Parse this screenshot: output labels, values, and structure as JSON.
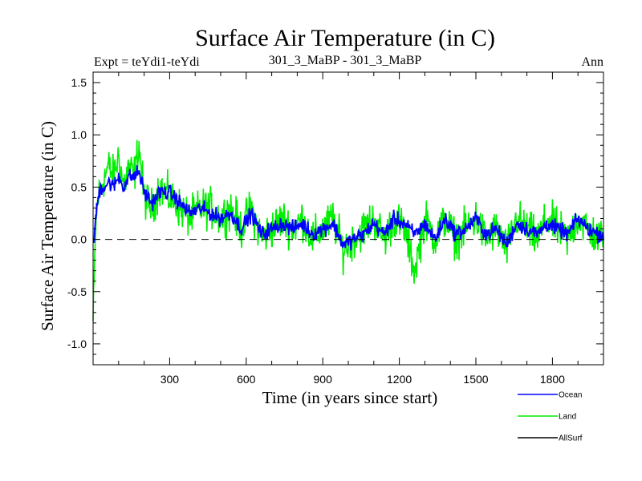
{
  "chart_data": {
    "type": "line",
    "title": "Surface Air Temperature (in C)",
    "subtitle_left": "Expt = teYdi1-teYdi",
    "subtitle_center": "301_3_MaBP - 301_3_MaBP",
    "subtitle_right": "Ann",
    "xlabel": "Time (in years since start)",
    "ylabel": "Surface Air Temperature (in C)",
    "xlim": [
      0,
      2000
    ],
    "ylim": [
      -1.2,
      1.6
    ],
    "x_ticks": [
      300,
      600,
      900,
      1200,
      1500,
      1800
    ],
    "x_tick_labels": [
      "300",
      "600",
      "900",
      "1200",
      "1500",
      "1800"
    ],
    "y_ticks": [
      -1.0,
      -0.5,
      0.0,
      0.5,
      1.0,
      1.5
    ],
    "y_tick_labels": [
      "-1.0",
      "-0.5",
      "0.0",
      "0.5",
      "1.0",
      "1.5"
    ],
    "zero_line": true,
    "legend_position": "bottom-right",
    "series": [
      {
        "name": "Land",
        "color": "#00ee00",
        "x": [
          0,
          10,
          20,
          30,
          45,
          60,
          80,
          100,
          120,
          140,
          160,
          180,
          200,
          230,
          260,
          300,
          340,
          380,
          420,
          460,
          500,
          540,
          580,
          620,
          660,
          700,
          740,
          780,
          820,
          860,
          900,
          940,
          980,
          1020,
          1060,
          1100,
          1140,
          1180,
          1220,
          1260,
          1300,
          1340,
          1380,
          1420,
          1460,
          1500,
          1540,
          1580,
          1620,
          1660,
          1700,
          1740,
          1780,
          1820,
          1860,
          1900,
          1940,
          1980,
          2000
        ],
        "y": [
          -0.8,
          0.1,
          0.4,
          0.5,
          0.6,
          0.7,
          0.6,
          0.8,
          0.5,
          0.7,
          0.6,
          0.9,
          0.4,
          0.3,
          0.5,
          0.4,
          0.3,
          0.2,
          0.3,
          0.3,
          0.2,
          0.3,
          0.1,
          0.3,
          0.0,
          0.1,
          0.2,
          0.1,
          0.2,
          0.0,
          0.1,
          0.2,
          -0.1,
          0.0,
          0.1,
          0.2,
          0.0,
          0.2,
          0.1,
          -0.3,
          0.2,
          0.0,
          0.2,
          0.0,
          0.1,
          0.2,
          0.0,
          0.1,
          -0.1,
          0.2,
          0.1,
          0.0,
          0.2,
          0.1,
          0.0,
          0.2,
          0.1,
          0.0,
          0.1
        ]
      },
      {
        "name": "Ocean",
        "color": "#0000ff",
        "x": [
          0,
          10,
          20,
          30,
          45,
          60,
          80,
          100,
          120,
          140,
          160,
          180,
          200,
          230,
          260,
          300,
          340,
          380,
          420,
          460,
          500,
          540,
          580,
          620,
          660,
          700,
          740,
          780,
          820,
          860,
          900,
          940,
          980,
          1020,
          1060,
          1100,
          1140,
          1180,
          1220,
          1260,
          1300,
          1340,
          1380,
          1420,
          1460,
          1500,
          1540,
          1580,
          1620,
          1660,
          1700,
          1740,
          1780,
          1820,
          1860,
          1900,
          1940,
          1980,
          2000
        ],
        "y": [
          -0.1,
          0.2,
          0.4,
          0.5,
          0.5,
          0.55,
          0.5,
          0.6,
          0.5,
          0.6,
          0.6,
          0.65,
          0.45,
          0.35,
          0.45,
          0.45,
          0.35,
          0.25,
          0.3,
          0.25,
          0.2,
          0.25,
          0.1,
          0.25,
          0.05,
          0.1,
          0.15,
          0.1,
          0.15,
          0.05,
          0.1,
          0.15,
          -0.05,
          0.0,
          0.05,
          0.15,
          0.05,
          0.2,
          0.15,
          0.05,
          0.15,
          0.0,
          0.2,
          0.05,
          0.1,
          0.2,
          0.05,
          0.1,
          -0.05,
          0.15,
          0.1,
          0.05,
          0.15,
          0.1,
          0.05,
          0.2,
          0.1,
          0.05,
          0.05
        ]
      },
      {
        "name": "AllSurf",
        "color": "#000000",
        "x": [],
        "y": []
      }
    ]
  }
}
